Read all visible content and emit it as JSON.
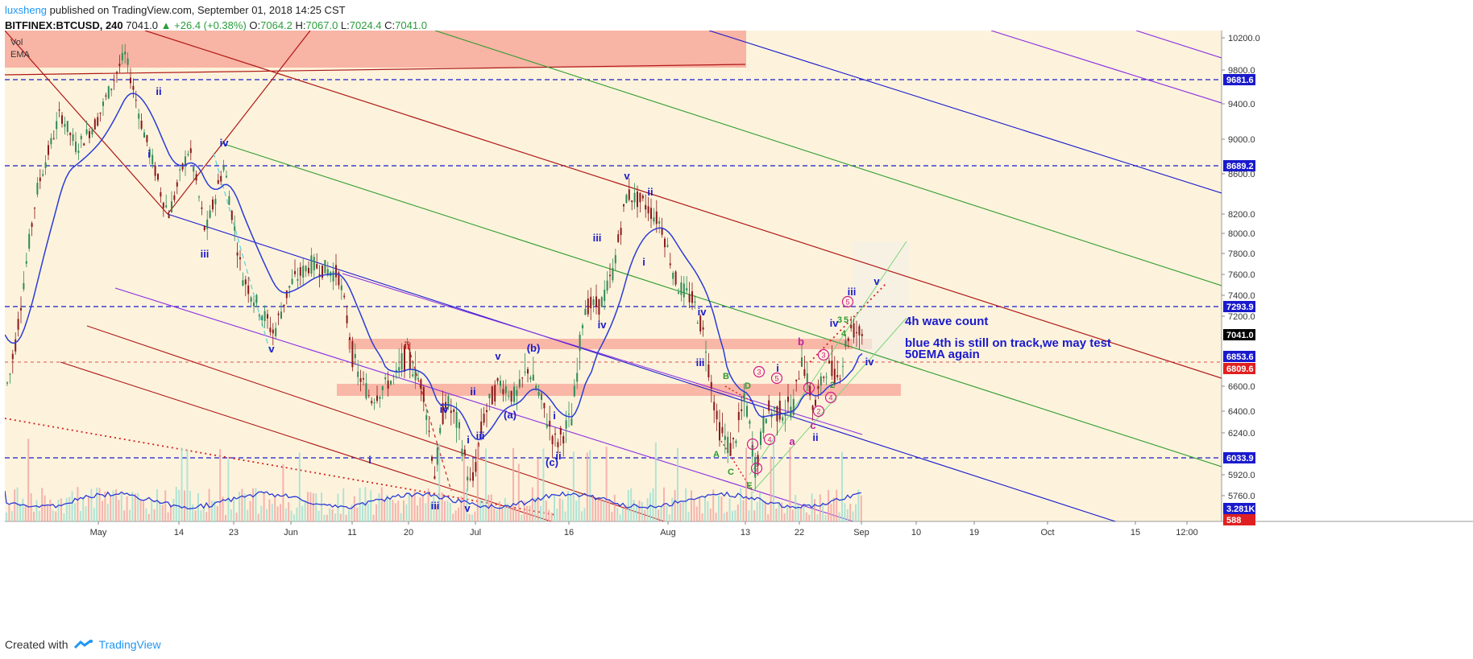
{
  "header": {
    "author": "luxsheng",
    "published": "published on TradingView.com, September 01, 2018 14:25 CST",
    "symbol": "BITFINEX:BTCUSD, 240",
    "last": "7041.0",
    "change": "+26.4 (+0.38%)",
    "o_label": "O:",
    "o": "7064.2",
    "h_label": "H:",
    "h": "7067.0",
    "l_label": "L:",
    "l": "7024.4",
    "c_label": "C:",
    "c": "7041.0"
  },
  "footer": {
    "created_with": "Created with",
    "brand": "TradingView"
  },
  "colors": {
    "background": "#fdf3dc",
    "blue": "#1a1acd",
    "red": "#c41e1e",
    "green": "#2e9b2e",
    "purple": "#8a2be2",
    "zone": "#f7a89a",
    "cyan": "#6cd6d6"
  },
  "chart_data": {
    "type": "candlestick",
    "indicators_legend": [
      "Vol",
      "EMA"
    ],
    "y_ticks": [
      "10200.0",
      "9800.0",
      "9400.0",
      "9000.0",
      "8600.0",
      "8200.0",
      "8000.0",
      "7800.0",
      "7600.0",
      "7400.0",
      "7200.0",
      "6600.0",
      "6400.0",
      "6240.0",
      "5920.0",
      "5760.0"
    ],
    "x_ticks": [
      "May",
      "14",
      "23",
      "Jun",
      "11",
      "20",
      "Jul",
      "16",
      "Aug",
      "13",
      "22",
      "Sep",
      "10",
      "19",
      "Oct",
      "15",
      "12:00"
    ],
    "price_tags": [
      {
        "value": "9681.6",
        "color": "#1a1acd"
      },
      {
        "value": "8689.2",
        "color": "#1a1acd"
      },
      {
        "value": "7293.9",
        "color": "#1a1acd"
      },
      {
        "value": "7041.0",
        "color": "#000000"
      },
      {
        "value": "6853.6",
        "color": "#1a1acd"
      },
      {
        "value": "6809.6",
        "color": "#e02020"
      },
      {
        "value": "6033.9",
        "color": "#1a1acd"
      },
      {
        "value": "3.281K",
        "color": "#1a1acd"
      },
      {
        "value": "588",
        "color": "#e02020"
      }
    ],
    "annotation": {
      "title": "4h wave count",
      "line1": "blue 4th is still on track,we may test",
      "line2": "50EMA again"
    },
    "wave_labels": [
      {
        "t": "ii",
        "c": "blue"
      },
      {
        "t": "i",
        "c": "blue"
      },
      {
        "t": "iv",
        "c": "blue"
      },
      {
        "t": "iii",
        "c": "blue"
      },
      {
        "t": "v",
        "c": "blue"
      },
      {
        "t": "ii",
        "c": "red"
      },
      {
        "t": "i",
        "c": "blue"
      },
      {
        "t": "iv",
        "c": "blue"
      },
      {
        "t": "iii",
        "c": "blue"
      },
      {
        "t": "iv",
        "c": "blue"
      },
      {
        "t": "i",
        "c": "blue"
      },
      {
        "t": "ii",
        "c": "blue"
      },
      {
        "t": "v",
        "c": "blue"
      },
      {
        "t": "iii",
        "c": "blue"
      },
      {
        "t": "(a)",
        "c": "blue"
      },
      {
        "t": "(b)",
        "c": "blue"
      },
      {
        "t": "(c)",
        "c": "blue"
      },
      {
        "t": "i",
        "c": "blue"
      },
      {
        "t": "ii",
        "c": "blue"
      },
      {
        "t": "v",
        "c": "blue"
      },
      {
        "t": "ii",
        "c": "blue"
      },
      {
        "t": "iii",
        "c": "blue"
      },
      {
        "t": "iv",
        "c": "blue"
      },
      {
        "t": "i",
        "c": "blue"
      },
      {
        "t": "iv",
        "c": "blue"
      },
      {
        "t": "iii",
        "c": "blue"
      },
      {
        "t": "v",
        "c": "blue"
      },
      {
        "t": "B",
        "c": "green"
      },
      {
        "t": "D",
        "c": "green"
      },
      {
        "t": "A",
        "c": "green"
      },
      {
        "t": "C",
        "c": "green"
      },
      {
        "t": "E",
        "c": "green"
      },
      {
        "t": "b",
        "c": "purple"
      },
      {
        "t": "a",
        "c": "purple"
      },
      {
        "t": "c",
        "c": "purple"
      },
      {
        "t": "i",
        "c": "blue"
      },
      {
        "t": "ii",
        "c": "blue"
      },
      {
        "t": "iii",
        "c": "blue"
      },
      {
        "t": "v",
        "c": "blue"
      },
      {
        "t": "iv",
        "c": "blue"
      },
      {
        "t": "3",
        "c": "green"
      },
      {
        "t": "5",
        "c": "green"
      },
      {
        "t": "4",
        "c": "green"
      },
      {
        "t": "2",
        "c": "green"
      }
    ],
    "circled_labels": [
      "1",
      "2",
      "3",
      "4",
      "5",
      "1",
      "2",
      "3",
      "4",
      "5"
    ]
  }
}
